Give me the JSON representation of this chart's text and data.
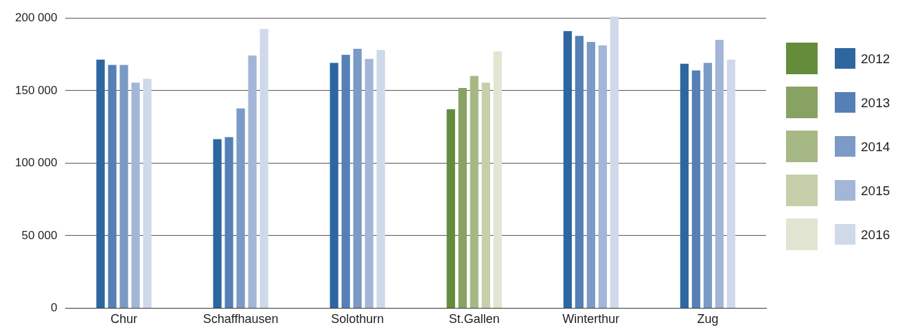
{
  "chart_data": {
    "type": "bar",
    "categories": [
      "Chur",
      "Schaffhausen",
      "Solothurn",
      "St.Gallen",
      "Winterthur",
      "Zug"
    ],
    "series": [
      {
        "name": "2012",
        "color": "#2e67a0",
        "colors": [
          "#2e67a0",
          "#2e67a0",
          "#2e67a0",
          "#648c3a",
          "#2e67a0",
          "#2e67a0"
        ],
        "values": [
          171400,
          116600,
          169100,
          137200,
          191100,
          168600
        ]
      },
      {
        "name": "2013",
        "color": "#5580b5",
        "colors": [
          "#5580b5",
          "#5580b5",
          "#5580b5",
          "#87a262",
          "#5580b5",
          "#5580b5"
        ],
        "values": [
          167700,
          118000,
          174700,
          151800,
          187800,
          163900
        ]
      },
      {
        "name": "2014",
        "color": "#7b9ac5",
        "colors": [
          "#7b9ac5",
          "#7b9ac5",
          "#7b9ac5",
          "#a6b884",
          "#7b9ac5",
          "#7b9ac5"
        ],
        "values": [
          167700,
          137700,
          178900,
          160200,
          183600,
          169100
        ]
      },
      {
        "name": "2015",
        "color": "#a3b6d7",
        "colors": [
          "#a3b6d7",
          "#a3b6d7",
          "#a3b6d7",
          "#c5cfa9",
          "#a3b6d7",
          "#a3b6d7"
        ],
        "values": [
          155500,
          174200,
          171900,
          155500,
          181300,
          185000
        ]
      },
      {
        "name": "2016",
        "color": "#cfd9ea",
        "colors": [
          "#cfd9ea",
          "#cfd9ea",
          "#cfd9ea",
          "#e1e5d2",
          "#cfd9ea",
          "#cfd9ea"
        ],
        "values": [
          158300,
          192500,
          178000,
          177100,
          201000,
          171400
        ]
      }
    ],
    "ylim": [
      0,
      202000
    ],
    "yticks": [
      {
        "value": 0,
        "label": "0"
      },
      {
        "value": 50000,
        "label": "50 000"
      },
      {
        "value": 100000,
        "label": "100 000"
      },
      {
        "value": 150000,
        "label": "150 000"
      },
      {
        "value": 200000,
        "label": "200 000"
      }
    ],
    "grid": "y",
    "legend": "right"
  }
}
